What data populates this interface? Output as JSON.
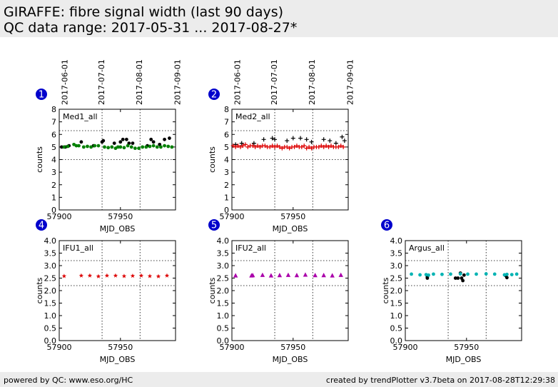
{
  "header": {
    "title": "GIRAFFE: fibre signal width (last 90 days)",
    "subtitle": "QC data range: 2017-05-31 ... 2017-08-27*"
  },
  "footer": {
    "left": "powered by QC: www.eso.org/HC",
    "right": "created by trendPlotter v3.7beta on 2017-08-28T12:29:38"
  },
  "colors": {
    "badge": "#0000cc",
    "black": "#000000",
    "green": "#008000",
    "red": "#dd0000",
    "magenta": "#aa00aa",
    "cyan": "#00b3b3"
  },
  "chart_data": [
    {
      "type": "scatter",
      "badge": "1",
      "label": "Med1_all",
      "xlabel": "MJD_OBS",
      "ylabel": "counts",
      "xlim": [
        57900,
        57995
      ],
      "ylim": [
        0,
        8
      ],
      "xticks": [
        57900,
        57950
      ],
      "yticks": [
        0,
        1,
        2,
        3,
        4,
        5,
        6,
        7,
        8
      ],
      "hlines": [
        4.0,
        6.3
      ],
      "date_axis": {
        "labels": [
          "2017-06-01",
          "2017-07-01",
          "2017-08-01",
          "2017-09-01"
        ],
        "mjd": [
          57905,
          57935,
          57966,
          57997
        ]
      },
      "series": [
        {
          "marker": "dot",
          "color": "#000000",
          "points": [
            [
              57902,
              5.0
            ],
            [
              57905,
              5.0
            ],
            [
              57908,
              5.1
            ],
            [
              57918,
              5.4
            ],
            [
              57928,
              5.1
            ],
            [
              57935,
              5.4
            ],
            [
              57936,
              5.5
            ],
            [
              57945,
              5.3
            ],
            [
              57950,
              5.4
            ],
            [
              57952,
              5.6
            ],
            [
              57955,
              5.6
            ],
            [
              57957,
              5.3
            ],
            [
              57960,
              5.3
            ],
            [
              57972,
              5.1
            ],
            [
              57975,
              5.6
            ],
            [
              57977,
              5.4
            ],
            [
              57982,
              5.2
            ],
            [
              57986,
              5.6
            ],
            [
              57990,
              5.7
            ]
          ]
        },
        {
          "marker": "dot",
          "color": "#008000",
          "points": [
            [
              57904,
              5.0
            ],
            [
              57907,
              5.05
            ],
            [
              57912,
              5.2
            ],
            [
              57914,
              5.1
            ],
            [
              57916,
              5.1
            ],
            [
              57920,
              5.0
            ],
            [
              57923,
              5.05
            ],
            [
              57926,
              5.0
            ],
            [
              57929,
              5.1
            ],
            [
              57932,
              5.1
            ],
            [
              57937,
              5.0
            ],
            [
              57940,
              4.95
            ],
            [
              57943,
              5.0
            ],
            [
              57946,
              4.9
            ],
            [
              57948,
              5.0
            ],
            [
              57950,
              5.0
            ],
            [
              57953,
              4.95
            ],
            [
              57956,
              5.1
            ],
            [
              57959,
              5.0
            ],
            [
              57962,
              4.9
            ],
            [
              57965,
              4.9
            ],
            [
              57968,
              5.0
            ],
            [
              57971,
              5.0
            ],
            [
              57974,
              5.05
            ],
            [
              57977,
              5.1
            ],
            [
              57980,
              5.0
            ],
            [
              57983,
              5.0
            ],
            [
              57986,
              5.1
            ],
            [
              57989,
              5.05
            ],
            [
              57992,
              5.0
            ]
          ]
        }
      ]
    },
    {
      "type": "scatter",
      "badge": "2",
      "label": "Med2_all",
      "xlabel": "MJD_OBS",
      "ylabel": "counts",
      "xlim": [
        57900,
        57995
      ],
      "ylim": [
        0,
        8
      ],
      "xticks": [
        57900,
        57950
      ],
      "yticks": [
        0,
        1,
        2,
        3,
        4,
        5,
        6,
        7,
        8
      ],
      "hlines": [
        4.0,
        6.3
      ],
      "date_axis": {
        "labels": [
          "2017-06-01",
          "2017-07-01",
          "2017-08-01",
          "2017-09-01"
        ],
        "mjd": [
          57905,
          57935,
          57966,
          57997
        ]
      },
      "series": [
        {
          "marker": "plus",
          "color": "#000000",
          "points": [
            [
              57903,
              5.2
            ],
            [
              57908,
              5.3
            ],
            [
              57918,
              5.3
            ],
            [
              57926,
              5.6
            ],
            [
              57933,
              5.7
            ],
            [
              57935,
              5.6
            ],
            [
              57945,
              5.5
            ],
            [
              57950,
              5.7
            ],
            [
              57956,
              5.7
            ],
            [
              57961,
              5.6
            ],
            [
              57965,
              5.4
            ],
            [
              57975,
              5.6
            ],
            [
              57980,
              5.5
            ],
            [
              57985,
              5.3
            ],
            [
              57990,
              5.8
            ],
            [
              57992,
              5.5
            ]
          ]
        },
        {
          "marker": "plus",
          "color": "#dd0000",
          "points": [
            [
              57901,
              5.1
            ],
            [
              57903,
              5.0
            ],
            [
              57905,
              5.1
            ],
            [
              57907,
              5.0
            ],
            [
              57909,
              5.1
            ],
            [
              57911,
              5.2
            ],
            [
              57913,
              5.0
            ],
            [
              57915,
              5.1
            ],
            [
              57917,
              5.1
            ],
            [
              57919,
              5.0
            ],
            [
              57921,
              5.1
            ],
            [
              57923,
              5.0
            ],
            [
              57925,
              5.1
            ],
            [
              57927,
              5.1
            ],
            [
              57929,
              5.0
            ],
            [
              57931,
              5.0
            ],
            [
              57933,
              5.1
            ],
            [
              57935,
              5.0
            ],
            [
              57937,
              5.1
            ],
            [
              57939,
              5.0
            ],
            [
              57941,
              4.9
            ],
            [
              57943,
              5.0
            ],
            [
              57945,
              5.0
            ],
            [
              57947,
              4.9
            ],
            [
              57949,
              5.0
            ],
            [
              57951,
              5.0
            ],
            [
              57953,
              5.1
            ],
            [
              57955,
              5.0
            ],
            [
              57957,
              5.0
            ],
            [
              57959,
              5.1
            ],
            [
              57961,
              4.9
            ],
            [
              57963,
              5.0
            ],
            [
              57965,
              4.9
            ],
            [
              57967,
              5.0
            ],
            [
              57969,
              5.0
            ],
            [
              57971,
              5.0
            ],
            [
              57973,
              5.1
            ],
            [
              57975,
              5.0
            ],
            [
              57977,
              5.1
            ],
            [
              57979,
              5.0
            ],
            [
              57981,
              5.1
            ],
            [
              57983,
              5.0
            ],
            [
              57985,
              5.0
            ],
            [
              57987,
              5.0
            ],
            [
              57989,
              5.1
            ],
            [
              57991,
              5.0
            ]
          ]
        }
      ]
    },
    {
      "type": "scatter",
      "badge": "4",
      "label": "IFU1_all",
      "xlabel": "MJD_OBS",
      "ylabel": "counts",
      "xlim": [
        57900,
        57995
      ],
      "ylim": [
        0,
        4
      ],
      "xticks": [
        57900,
        57950
      ],
      "yticks": [
        0.0,
        0.5,
        1.0,
        1.5,
        2.0,
        2.5,
        3.0,
        3.5,
        4.0
      ],
      "hlines": [
        2.2,
        3.2
      ],
      "series": [
        {
          "marker": "star",
          "color": "#dd0000",
          "points": [
            [
              57904,
              2.58
            ],
            [
              57918,
              2.6
            ],
            [
              57925,
              2.6
            ],
            [
              57932,
              2.57
            ],
            [
              57939,
              2.6
            ],
            [
              57946,
              2.6
            ],
            [
              57953,
              2.58
            ],
            [
              57960,
              2.59
            ],
            [
              57967,
              2.6
            ],
            [
              57974,
              2.58
            ],
            [
              57981,
              2.57
            ],
            [
              57988,
              2.6
            ]
          ]
        }
      ]
    },
    {
      "type": "scatter",
      "badge": "5",
      "label": "IFU2_all",
      "xlabel": "MJD_OBS",
      "ylabel": "counts",
      "xlim": [
        57900,
        57995
      ],
      "ylim": [
        0,
        4
      ],
      "xticks": [
        57900,
        57950
      ],
      "yticks": [
        0.0,
        0.5,
        1.0,
        1.5,
        2.0,
        2.5,
        3.0,
        3.5,
        4.0
      ],
      "hlines": [
        2.2,
        3.2
      ],
      "series": [
        {
          "marker": "triangle",
          "color": "#aa00aa",
          "points": [
            [
              57903,
              2.6
            ],
            [
              57916,
              2.6
            ],
            [
              57917,
              2.61
            ],
            [
              57925,
              2.62
            ],
            [
              57932,
              2.6
            ],
            [
              57939,
              2.61
            ],
            [
              57946,
              2.62
            ],
            [
              57953,
              2.61
            ],
            [
              57960,
              2.63
            ],
            [
              57968,
              2.61
            ],
            [
              57975,
              2.61
            ],
            [
              57982,
              2.6
            ],
            [
              57989,
              2.62
            ]
          ]
        }
      ]
    },
    {
      "type": "scatter",
      "badge": "6",
      "label": "Argus_all",
      "xlabel": "MJD_OBS",
      "ylabel": "counts",
      "xlim": [
        57900,
        57995
      ],
      "ylim": [
        0,
        4
      ],
      "xticks": [
        57900,
        57950
      ],
      "yticks": [
        0.0,
        0.5,
        1.0,
        1.5,
        2.0,
        2.5,
        3.0,
        3.5,
        4.0
      ],
      "hlines": [
        2.2,
        3.2
      ],
      "series": [
        {
          "marker": "dot",
          "color": "#000000",
          "points": [
            [
              57918,
              2.55
            ],
            [
              57918,
              2.5
            ],
            [
              57941,
              2.5
            ],
            [
              57943,
              2.5
            ],
            [
              57945,
              2.7
            ],
            [
              57946,
              2.5
            ],
            [
              57947,
              2.4
            ],
            [
              57948,
              2.62
            ],
            [
              57982,
              2.6
            ],
            [
              57983,
              2.52
            ]
          ]
        },
        {
          "marker": "dot",
          "color": "#00b3b3",
          "points": [
            [
              57905,
              2.66
            ],
            [
              57912,
              2.63
            ],
            [
              57917,
              2.64
            ],
            [
              57919,
              2.62
            ],
            [
              57923,
              2.66
            ],
            [
              57930,
              2.65
            ],
            [
              57937,
              2.66
            ],
            [
              57945,
              2.67
            ],
            [
              57951,
              2.66
            ],
            [
              57958,
              2.66
            ],
            [
              57966,
              2.67
            ],
            [
              57973,
              2.66
            ],
            [
              57981,
              2.63
            ],
            [
              57983,
              2.65
            ],
            [
              57987,
              2.64
            ],
            [
              57991,
              2.66
            ]
          ]
        }
      ]
    }
  ]
}
